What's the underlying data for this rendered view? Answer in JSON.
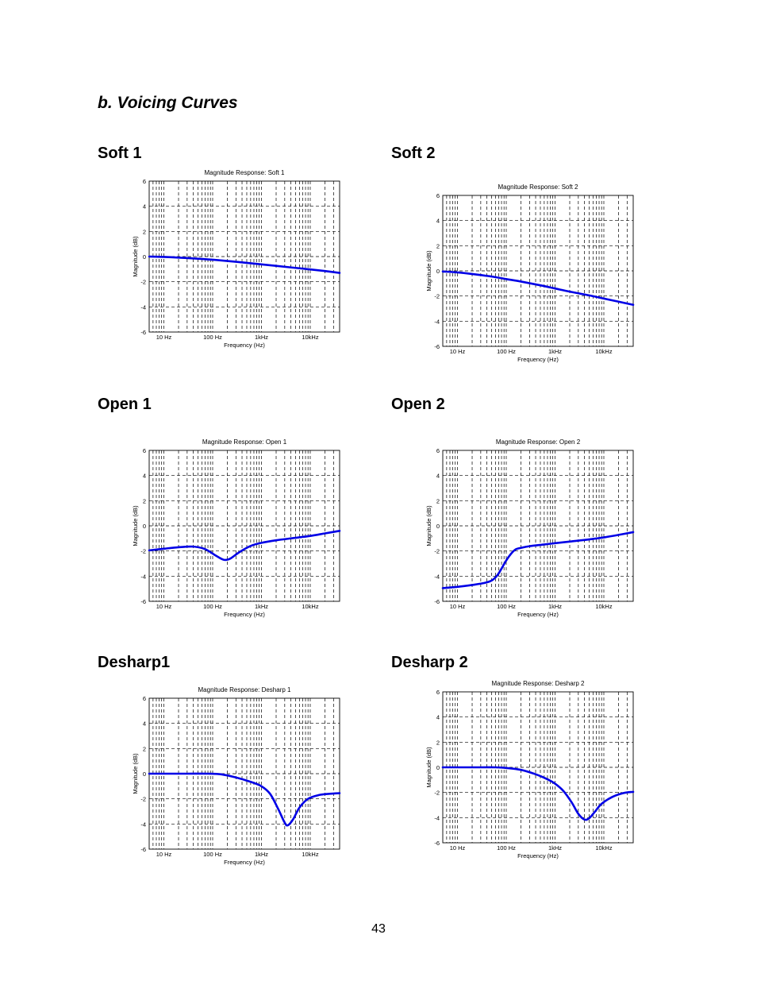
{
  "section_title": "b. Voicing Curves",
  "page_number": "43",
  "curve_color": "#0000e6",
  "chart_data": [
    {
      "heading": "Soft 1",
      "type": "line",
      "title": "Magnitude Response: Soft 1",
      "xlabel": "Frequency (Hz)",
      "ylabel": "Magnitude (dB)",
      "x_scale": "log",
      "xlim": [
        5,
        40000
      ],
      "ylim": [
        -6,
        6
      ],
      "grid": true,
      "xticks": [
        10,
        100,
        1000,
        10000
      ],
      "xtick_labels": [
        "10 Hz",
        "100 Hz",
        "1kHz",
        "10kHz"
      ],
      "yticks": [
        -6,
        -4,
        -2,
        0,
        2,
        4,
        6
      ],
      "ytick_labels": [
        "-6",
        "-4",
        "-2",
        "0",
        "2",
        "4",
        "6"
      ],
      "series": [
        {
          "x": [
            5,
            10,
            20,
            50,
            100,
            200,
            500,
            1000,
            2000,
            5000,
            10000,
            20000,
            40000
          ],
          "y": [
            0,
            -0.03,
            -0.08,
            -0.17,
            -0.25,
            -0.35,
            -0.5,
            -0.62,
            -0.74,
            -0.9,
            -1.02,
            -1.15,
            -1.3
          ]
        }
      ]
    },
    {
      "heading": "Soft 2",
      "type": "line",
      "title": "Magnitude Response: Soft 2",
      "xlabel": "Frequency (Hz)",
      "ylabel": "Magnitude (dB)",
      "x_scale": "log",
      "xlim": [
        5,
        40000
      ],
      "ylim": [
        -6,
        6
      ],
      "grid": true,
      "xticks": [
        10,
        100,
        1000,
        10000
      ],
      "xtick_labels": [
        "10 Hz",
        "100 Hz",
        "1kHz",
        "10kHz"
      ],
      "yticks": [
        -6,
        -4,
        -2,
        0,
        2,
        4,
        6
      ],
      "ytick_labels": [
        "-6",
        "-4",
        "-2",
        "0",
        "2",
        "4",
        "6"
      ],
      "series": [
        {
          "x": [
            5,
            10,
            20,
            50,
            100,
            200,
            500,
            1000,
            2000,
            5000,
            10000,
            20000,
            40000
          ],
          "y": [
            -0.05,
            -0.12,
            -0.25,
            -0.45,
            -0.65,
            -0.85,
            -1.15,
            -1.4,
            -1.65,
            -1.95,
            -2.2,
            -2.45,
            -2.7
          ]
        }
      ]
    },
    {
      "heading": "Open 1",
      "type": "line",
      "title": "Magnitude Response: Open 1",
      "xlabel": "Frequency (Hz)",
      "ylabel": "Magnitude (dB)",
      "x_scale": "log",
      "xlim": [
        5,
        40000
      ],
      "ylim": [
        -6,
        6
      ],
      "grid": true,
      "xticks": [
        10,
        100,
        1000,
        10000
      ],
      "xtick_labels": [
        "10 Hz",
        "100 Hz",
        "1kHz",
        "10kHz"
      ],
      "yticks": [
        -6,
        -4,
        -2,
        0,
        2,
        4,
        6
      ],
      "ytick_labels": [
        "-6",
        "-4",
        "-2",
        "0",
        "2",
        "4",
        "6"
      ],
      "series": [
        {
          "x": [
            5,
            10,
            20,
            40,
            70,
            120,
            170,
            230,
            350,
            600,
            1000,
            2000,
            5000,
            10000,
            20000,
            40000
          ],
          "y": [
            -1.95,
            -1.82,
            -1.7,
            -1.65,
            -1.85,
            -2.4,
            -2.7,
            -2.6,
            -2.1,
            -1.6,
            -1.35,
            -1.15,
            -0.95,
            -0.8,
            -0.6,
            -0.4
          ]
        }
      ]
    },
    {
      "heading": "Open 2",
      "type": "line",
      "title": "Magnitude Response: Open 2",
      "xlabel": "Frequency (Hz)",
      "ylabel": "Magnitude (dB)",
      "x_scale": "log",
      "xlim": [
        5,
        40000
      ],
      "ylim": [
        -6,
        6
      ],
      "grid": true,
      "xticks": [
        10,
        100,
        1000,
        10000
      ],
      "xtick_labels": [
        "10 Hz",
        "100 Hz",
        "1kHz",
        "10kHz"
      ],
      "yticks": [
        -6,
        -4,
        -2,
        0,
        2,
        4,
        6
      ],
      "ytick_labels": [
        "-6",
        "-4",
        "-2",
        "0",
        "2",
        "4",
        "6"
      ],
      "series": [
        {
          "x": [
            5,
            10,
            20,
            35,
            50,
            65,
            80,
            100,
            130,
            160,
            200,
            300,
            600,
            1000,
            2000,
            5000,
            10000,
            20000,
            40000
          ],
          "y": [
            -4.95,
            -4.85,
            -4.7,
            -4.55,
            -4.35,
            -3.95,
            -3.4,
            -2.75,
            -2.15,
            -1.85,
            -1.75,
            -1.62,
            -1.48,
            -1.38,
            -1.25,
            -1.08,
            -0.92,
            -0.72,
            -0.5
          ]
        }
      ]
    },
    {
      "heading": "Desharp1",
      "type": "line",
      "title": "Magnitude Response: Desharp 1",
      "xlabel": "Frequency (Hz)",
      "ylabel": "Magnitude (dB)",
      "x_scale": "log",
      "xlim": [
        5,
        40000
      ],
      "ylim": [
        -6,
        6
      ],
      "grid": true,
      "xticks": [
        10,
        100,
        1000,
        10000
      ],
      "xtick_labels": [
        "10 Hz",
        "100 Hz",
        "1kHz",
        "10kHz"
      ],
      "yticks": [
        -6,
        -4,
        -2,
        0,
        2,
        4,
        6
      ],
      "ytick_labels": [
        "-6",
        "-4",
        "-2",
        "0",
        "2",
        "4",
        "6"
      ],
      "series": [
        {
          "x": [
            5,
            10,
            30,
            80,
            150,
            300,
            600,
            1000,
            1500,
            2200,
            3000,
            3500,
            4500,
            6000,
            9000,
            15000,
            25000,
            40000
          ],
          "y": [
            0,
            0,
            0,
            0,
            -0.05,
            -0.3,
            -0.65,
            -1.0,
            -1.6,
            -2.8,
            -3.9,
            -4.1,
            -3.6,
            -2.7,
            -2.0,
            -1.7,
            -1.6,
            -1.55
          ]
        }
      ]
    },
    {
      "heading": "Desharp 2",
      "type": "line",
      "title": "Magnitude Response: Desharp 2",
      "xlabel": "Frequency (Hz)",
      "ylabel": "Magnitude (dB)",
      "x_scale": "log",
      "xlim": [
        5,
        40000
      ],
      "ylim": [
        -6,
        6
      ],
      "grid": true,
      "xticks": [
        10,
        100,
        1000,
        10000
      ],
      "xtick_labels": [
        "10 Hz",
        "100 Hz",
        "1kHz",
        "10kHz"
      ],
      "yticks": [
        -6,
        -4,
        -2,
        0,
        2,
        4,
        6
      ],
      "ytick_labels": [
        "-6",
        "-4",
        "-2",
        "0",
        "2",
        "4",
        "6"
      ],
      "series": [
        {
          "x": [
            5,
            10,
            30,
            60,
            100,
            200,
            400,
            700,
            1000,
            1500,
            2200,
            3000,
            4000,
            5000,
            6500,
            9000,
            15000,
            25000,
            40000
          ],
          "y": [
            0,
            0,
            0,
            0,
            -0.05,
            -0.2,
            -0.55,
            -0.95,
            -1.3,
            -1.9,
            -2.8,
            -3.7,
            -4.15,
            -4.05,
            -3.55,
            -2.9,
            -2.35,
            -2.05,
            -1.95
          ]
        }
      ]
    }
  ]
}
